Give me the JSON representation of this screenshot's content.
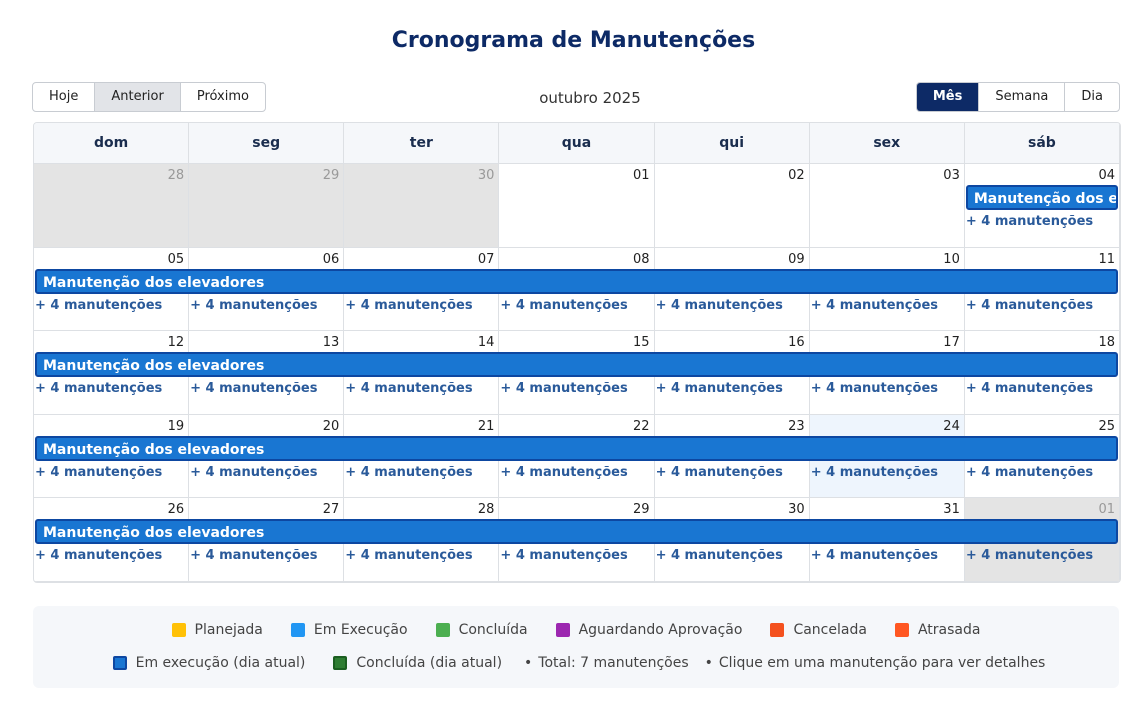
{
  "header": {
    "title": "Cronograma de Manutenções"
  },
  "toolbar": {
    "nav": [
      "Hoje",
      "Anterior",
      "Próximo"
    ],
    "active_nav": 1,
    "period": "outubro 2025",
    "views": [
      "Mês",
      "Semana",
      "Dia"
    ],
    "active_view": 0
  },
  "calendar": {
    "weekdays": [
      "dom",
      "seg",
      "ter",
      "qua",
      "qui",
      "sex",
      "sáb"
    ],
    "weeks": [
      {
        "days": [
          {
            "label": "28",
            "outside": true
          },
          {
            "label": "29",
            "outside": true
          },
          {
            "label": "30",
            "outside": true
          },
          {
            "label": "01"
          },
          {
            "label": "02"
          },
          {
            "label": "03"
          },
          {
            "label": "04",
            "more": "+ 4 manutenções"
          }
        ],
        "event": {
          "title": "Manutenção dos elevadores",
          "start_day": 6,
          "end_day": 6
        }
      },
      {
        "days": [
          {
            "label": "05",
            "more": "+ 4 manutenções"
          },
          {
            "label": "06",
            "more": "+ 4 manutenções"
          },
          {
            "label": "07",
            "more": "+ 4 manutenções"
          },
          {
            "label": "08",
            "more": "+ 4 manutenções"
          },
          {
            "label": "09",
            "more": "+ 4 manutenções"
          },
          {
            "label": "10",
            "more": "+ 4 manutenções"
          },
          {
            "label": "11",
            "more": "+ 4 manutenções"
          }
        ],
        "event": {
          "title": "Manutenção dos elevadores",
          "start_day": 0,
          "end_day": 6
        }
      },
      {
        "days": [
          {
            "label": "12",
            "more": "+ 4 manutenções"
          },
          {
            "label": "13",
            "more": "+ 4 manutenções"
          },
          {
            "label": "14",
            "more": "+ 4 manutenções"
          },
          {
            "label": "15",
            "more": "+ 4 manutenções"
          },
          {
            "label": "16",
            "more": "+ 4 manutenções"
          },
          {
            "label": "17",
            "more": "+ 4 manutenções"
          },
          {
            "label": "18",
            "more": "+ 4 manutenções"
          }
        ],
        "event": {
          "title": "Manutenção dos elevadores",
          "start_day": 0,
          "end_day": 6
        }
      },
      {
        "days": [
          {
            "label": "19",
            "more": "+ 4 manutenções"
          },
          {
            "label": "20",
            "more": "+ 4 manutenções"
          },
          {
            "label": "21",
            "more": "+ 4 manutenções"
          },
          {
            "label": "22",
            "more": "+ 4 manutenções"
          },
          {
            "label": "23",
            "more": "+ 4 manutenções"
          },
          {
            "label": "24",
            "more": "+ 4 manutenções",
            "today": true
          },
          {
            "label": "25",
            "more": "+ 4 manutenções"
          }
        ],
        "event": {
          "title": "Manutenção dos elevadores",
          "start_day": 0,
          "end_day": 6
        }
      },
      {
        "days": [
          {
            "label": "26",
            "more": "+ 4 manutenções"
          },
          {
            "label": "27",
            "more": "+ 4 manutenções"
          },
          {
            "label": "28",
            "more": "+ 4 manutenções"
          },
          {
            "label": "29",
            "more": "+ 4 manutenções"
          },
          {
            "label": "30",
            "more": "+ 4 manutenções"
          },
          {
            "label": "31",
            "more": "+ 4 manutenções"
          },
          {
            "label": "01",
            "more": "+ 4 manutenções",
            "outside": true
          }
        ],
        "event": {
          "title": "Manutenção dos elevadores",
          "start_day": 0,
          "end_day": 6
        }
      }
    ]
  },
  "legend": {
    "statuses": [
      {
        "label": "Planejada",
        "color": "#ffc107"
      },
      {
        "label": "Em Execução",
        "color": "#2196f3"
      },
      {
        "label": "Concluída",
        "color": "#4caf50"
      },
      {
        "label": "Aguardando Aprovação",
        "color": "#9c27b0"
      },
      {
        "label": "Cancelada",
        "color": "#f4511e"
      },
      {
        "label": "Atrasada",
        "color": "#ff5722"
      }
    ],
    "today_states": [
      {
        "label": "Em execução (dia atual)",
        "color": "#1976d2",
        "border": "#0d47a1"
      },
      {
        "label": "Concluída (dia atual)",
        "color": "#2e7d32",
        "border": "#1b5e20"
      }
    ],
    "notes": [
      "Total: 7 manutenções",
      "Clique em uma manutenção para ver detalhes"
    ]
  }
}
